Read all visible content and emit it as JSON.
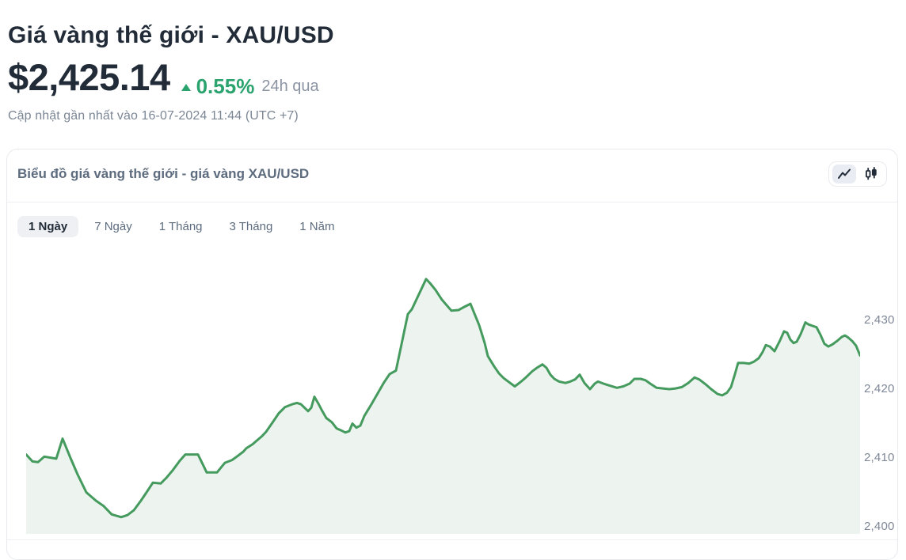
{
  "page": {
    "title": "Giá vàng thế giới - XAU/USD",
    "price": "$2,425.14",
    "change_percent": "0.55%",
    "change_period": "24h qua",
    "change_direction": "up",
    "updated_text": "Cập nhật gần nhất vào 16-07-2024 11:44 (UTC +7)"
  },
  "panel": {
    "title": "Biểu đồ giá vàng thế giới - giá vàng XAU/USD",
    "tabs": [
      {
        "label": "1 Ngày",
        "active": true
      },
      {
        "label": "7 Ngày",
        "active": false
      },
      {
        "label": "1 Tháng",
        "active": false
      },
      {
        "label": "3 Tháng",
        "active": false
      },
      {
        "label": "1 Năm",
        "active": false
      }
    ],
    "chart_type_toggle": [
      {
        "icon": "line-chart-icon",
        "selected": true
      },
      {
        "icon": "candlestick-chart-icon",
        "selected": false
      }
    ]
  },
  "colors": {
    "heading": "#222b38",
    "green_accent": "#2ba36e",
    "line_green": "#459a5e",
    "area_fill": "#edf4ef",
    "muted_gray": "#8b94a3",
    "slate": "#5c6b7e",
    "axis_gray": "#7e8797",
    "border": "#e8eaee"
  },
  "chart_data": {
    "type": "area",
    "title": "Biểu đồ giá vàng thế giới - giá vàng XAU/USD",
    "period_selected": "1 Ngày",
    "xlabel": "",
    "ylabel": "",
    "x_axis_note": "intraday time axis, tick labels not visible in screenshot",
    "ylim": [
      2400,
      2440
    ],
    "yticks": [
      {
        "value": 2400,
        "label": "2,400"
      },
      {
        "value": 2410,
        "label": "2,410"
      },
      {
        "value": 2420,
        "label": "2,420"
      },
      {
        "value": 2430,
        "label": "2,430"
      }
    ],
    "grid": false,
    "legend_position": "none",
    "series": [
      {
        "name": "XAU/USD",
        "points": [
          [
            32,
            2410.5
          ],
          [
            40,
            2409.5
          ],
          [
            47,
            2409.4
          ],
          [
            55,
            2410.2
          ],
          [
            65,
            2410.0
          ],
          [
            70,
            2409.9
          ],
          [
            78,
            2412.8
          ],
          [
            88,
            2410.0
          ],
          [
            97,
            2407.6
          ],
          [
            108,
            2405.0
          ],
          [
            120,
            2403.8
          ],
          [
            130,
            2403.0
          ],
          [
            140,
            2401.8
          ],
          [
            152,
            2401.4
          ],
          [
            160,
            2401.7
          ],
          [
            168,
            2402.4
          ],
          [
            177,
            2403.8
          ],
          [
            184,
            2405.0
          ],
          [
            192,
            2406.4
          ],
          [
            202,
            2406.3
          ],
          [
            209,
            2407.1
          ],
          [
            217,
            2408.2
          ],
          [
            226,
            2409.6
          ],
          [
            233,
            2410.5
          ],
          [
            249,
            2410.5
          ],
          [
            260,
            2407.9
          ],
          [
            273,
            2407.9
          ],
          [
            283,
            2409.3
          ],
          [
            292,
            2409.7
          ],
          [
            298,
            2410.2
          ],
          [
            306,
            2410.9
          ],
          [
            310,
            2411.4
          ],
          [
            318,
            2412.0
          ],
          [
            322,
            2412.4
          ],
          [
            330,
            2413.2
          ],
          [
            335,
            2413.8
          ],
          [
            344,
            2415.3
          ],
          [
            351,
            2416.5
          ],
          [
            359,
            2417.4
          ],
          [
            368,
            2417.8
          ],
          [
            374,
            2418.0
          ],
          [
            379,
            2417.8
          ],
          [
            388,
            2416.8
          ],
          [
            392,
            2417.3
          ],
          [
            396,
            2418.9
          ],
          [
            401,
            2417.9
          ],
          [
            406,
            2416.8
          ],
          [
            411,
            2415.8
          ],
          [
            418,
            2415.2
          ],
          [
            424,
            2414.3
          ],
          [
            430,
            2414.0
          ],
          [
            435,
            2413.7
          ],
          [
            440,
            2413.9
          ],
          [
            444,
            2415.0
          ],
          [
            449,
            2414.4
          ],
          [
            454,
            2414.7
          ],
          [
            459,
            2416.1
          ],
          [
            468,
            2417.8
          ],
          [
            484,
            2421.0
          ],
          [
            491,
            2422.2
          ],
          [
            499,
            2422.7
          ],
          [
            514,
            2430.9
          ],
          [
            519,
            2431.6
          ],
          [
            537,
            2436.0
          ],
          [
            542,
            2435.4
          ],
          [
            549,
            2434.4
          ],
          [
            557,
            2433.0
          ],
          [
            569,
            2431.4
          ],
          [
            578,
            2431.5
          ],
          [
            586,
            2432.0
          ],
          [
            593,
            2432.4
          ],
          [
            604,
            2429.3
          ],
          [
            611,
            2426.7
          ],
          [
            615,
            2424.8
          ],
          [
            623,
            2423.3
          ],
          [
            629,
            2422.3
          ],
          [
            635,
            2421.6
          ],
          [
            642,
            2421.0
          ],
          [
            649,
            2420.4
          ],
          [
            657,
            2421.1
          ],
          [
            663,
            2421.7
          ],
          [
            671,
            2422.6
          ],
          [
            677,
            2423.1
          ],
          [
            684,
            2423.6
          ],
          [
            689,
            2423.1
          ],
          [
            694,
            2422.1
          ],
          [
            699,
            2421.5
          ],
          [
            705,
            2421.1
          ],
          [
            713,
            2420.9
          ],
          [
            719,
            2421.1
          ],
          [
            725,
            2421.4
          ],
          [
            731,
            2422.1
          ],
          [
            737,
            2420.9
          ],
          [
            744,
            2420.0
          ],
          [
            750,
            2420.8
          ],
          [
            754,
            2421.1
          ],
          [
            761,
            2420.8
          ],
          [
            769,
            2420.5
          ],
          [
            778,
            2420.2
          ],
          [
            786,
            2420.4
          ],
          [
            794,
            2420.8
          ],
          [
            800,
            2421.5
          ],
          [
            808,
            2421.5
          ],
          [
            814,
            2421.3
          ],
          [
            820,
            2420.8
          ],
          [
            828,
            2420.2
          ],
          [
            836,
            2420.1
          ],
          [
            844,
            2420.0
          ],
          [
            852,
            2420.1
          ],
          [
            860,
            2420.3
          ],
          [
            868,
            2420.9
          ],
          [
            876,
            2421.7
          ],
          [
            882,
            2421.4
          ],
          [
            890,
            2420.7
          ],
          [
            897,
            2420.0
          ],
          [
            905,
            2419.3
          ],
          [
            911,
            2419.1
          ],
          [
            917,
            2419.5
          ],
          [
            922,
            2420.3
          ],
          [
            927,
            2422.2
          ],
          [
            931,
            2423.8
          ],
          [
            938,
            2423.8
          ],
          [
            945,
            2423.7
          ],
          [
            951,
            2424.0
          ],
          [
            957,
            2424.5
          ],
          [
            962,
            2425.4
          ],
          [
            966,
            2426.4
          ],
          [
            971,
            2426.2
          ],
          [
            977,
            2425.5
          ],
          [
            984,
            2427.1
          ],
          [
            989,
            2428.4
          ],
          [
            993,
            2428.2
          ],
          [
            997,
            2427.2
          ],
          [
            1001,
            2426.7
          ],
          [
            1005,
            2426.9
          ],
          [
            1010,
            2428.0
          ],
          [
            1016,
            2429.7
          ],
          [
            1020,
            2429.4
          ],
          [
            1025,
            2429.2
          ],
          [
            1030,
            2429.0
          ],
          [
            1035,
            2427.9
          ],
          [
            1040,
            2426.6
          ],
          [
            1045,
            2426.2
          ],
          [
            1050,
            2426.5
          ],
          [
            1056,
            2427.0
          ],
          [
            1062,
            2427.6
          ],
          [
            1066,
            2427.8
          ],
          [
            1070,
            2427.5
          ],
          [
            1075,
            2427.0
          ],
          [
            1080,
            2426.3
          ],
          [
            1085,
            2424.9
          ]
        ]
      }
    ]
  }
}
